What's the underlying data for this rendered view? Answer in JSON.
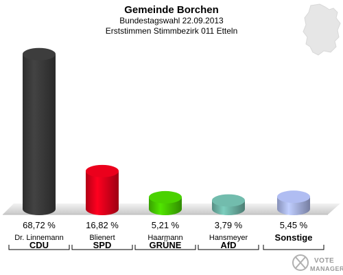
{
  "chart_data": {
    "type": "bar",
    "title": "Gemeinde Borchen",
    "subtitle_1": "Bundestagswahl 22.09.2013",
    "subtitle_2": "Erststimmen Stimmbezirk 011 Etteln",
    "categories": [
      "CDU",
      "SPD",
      "GRÜNE",
      "AfD",
      "Sonstige"
    ],
    "candidates": [
      "Dr. Linnemann",
      "Blienert",
      "Haarmann",
      "Hansmeyer",
      ""
    ],
    "values": [
      68.72,
      16.82,
      5.21,
      3.79,
      5.45
    ],
    "value_labels": [
      "68,72 %",
      "16,82 %",
      "5,21 %",
      "3,79 %",
      "5,45 %"
    ],
    "colors": [
      "#3a3a3a",
      "#e0001b",
      "#46c800",
      "#6db3a5",
      "#a8b4e6"
    ],
    "ylim": [
      0,
      72
    ],
    "grid": false
  },
  "logo": {
    "line1": "VOTE",
    "line2": "MANAGER"
  },
  "icons": [
    "germany-map-icon",
    "vote-manager-logo-icon"
  ]
}
